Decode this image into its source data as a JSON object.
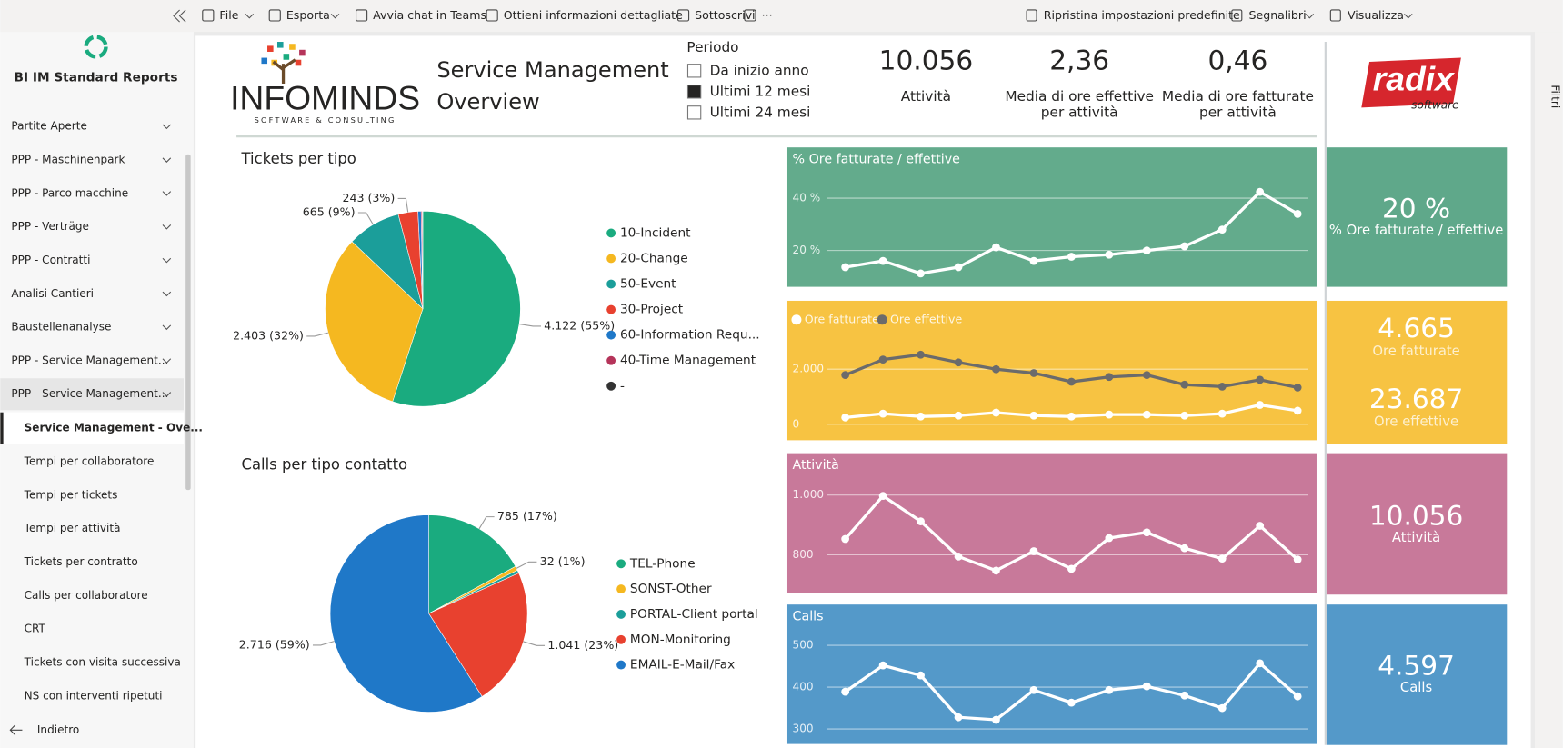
{
  "toolbar": {
    "left": [
      "File",
      "Esporta",
      "Avvia chat in Teams",
      "Ottieni informazioni dettagliate",
      "Sottoscrivi",
      "···"
    ],
    "right": [
      "Ripristina impostazioni predefinite",
      "Segnalibri",
      "Visualizza"
    ]
  },
  "sidebar": {
    "title": "BI IM Standard Reports",
    "sections": [
      "Partite Aperte",
      "PPP - Maschinenpark",
      "PPP - Parco macchine",
      "PPP - Verträge",
      "PPP - Contratti",
      "Analisi Cantieri",
      "Baustellenanalyse",
      "PPP - Service Management...",
      "PPP - Service Management..."
    ],
    "pages": [
      "Service Management - Ove...",
      "Tempi per collaboratore",
      "Tempi per tickets",
      "Tempi per attività",
      "Tickets per contratto",
      "Calls per collaboratore",
      "CRT",
      "Tickets con visita successiva",
      "NS con interventi ripetuti"
    ],
    "active_page": 0,
    "back": "Indietro"
  },
  "filters_pane": "Filtri",
  "header": {
    "logo": "INFOMINDS",
    "logo_tagline": "SOFTWARE & CONSULTING",
    "title_lines": [
      "Service Management",
      "Overview"
    ],
    "brand": "radix",
    "brand_tagline": "software"
  },
  "slicer": {
    "title": "Periodo",
    "options": [
      "Da inizio anno",
      "Ultimi 12 mesi",
      "Ultimi 24 mesi"
    ],
    "selected": 1
  },
  "kpis": [
    {
      "value": "10.056",
      "label_lines": [
        "Attività"
      ]
    },
    {
      "value": "2,36",
      "label_lines": [
        "Media di ore effettive",
        "per attività"
      ]
    },
    {
      "value": "0,46",
      "label_lines": [
        "Media di ore fatturate",
        "per attività"
      ]
    }
  ],
  "cards": [
    {
      "value": "20 %",
      "label": "% Ore fatturate / effettive"
    },
    {
      "value": "4.665",
      "label": "Ore fatturate"
    },
    {
      "value": "23.687",
      "label": "Ore effettive"
    },
    {
      "value": "10.056",
      "label": "Attività"
    },
    {
      "value": "4.597",
      "label": "Calls"
    }
  ],
  "charts": [
    {
      "type": "pie",
      "title": "Tickets per tipo",
      "categories": [
        "10-Incident",
        "20-Change",
        "50-Event",
        "30-Project",
        "60-Information Requ...",
        "40-Time Management",
        "-"
      ],
      "values": [
        4122,
        2403,
        665,
        243,
        40,
        15,
        5
      ],
      "value_labels": [
        "4.122 (55%)",
        "2.403 (32%)",
        "665 (9%)",
        "243 (3%)",
        null,
        null,
        null
      ],
      "colors": [
        "#1aab7f",
        "#f5b820",
        "#1b9e9a",
        "#e8412f",
        "#1f78c8",
        "#b5345a",
        "#333333"
      ]
    },
    {
      "type": "pie",
      "title": "Calls per tipo contatto",
      "categories": [
        "TEL-Phone",
        "SONST-Other",
        "PORTAL-Client portal",
        "MON-Monitoring",
        "EMAIL-E-Mail/Fax"
      ],
      "values": [
        785,
        32,
        23,
        1041,
        2716
      ],
      "value_labels": [
        "785 (17%)",
        "32 (1%)",
        null,
        "1.041 (23%)",
        "2.716 (59%)"
      ],
      "colors": [
        "#1aab7f",
        "#f5b820",
        "#1b9e9a",
        "#e8412f",
        "#1f78c8"
      ]
    },
    {
      "type": "line",
      "title": "% Ore fatturate / effettive",
      "background": "#63ab8c",
      "categories": [
        null,
        null,
        null,
        null,
        null,
        null,
        null,
        null,
        null,
        null,
        null,
        null,
        null
      ],
      "ylim": [
        8,
        48
      ],
      "yticks": [
        {
          "value": 20,
          "label": "20 %"
        },
        {
          "value": 40,
          "label": "40 %"
        }
      ],
      "grid": true,
      "series": [
        {
          "color": "#ffffff",
          "values": [
            13.6,
            16,
            11.2,
            13.6,
            21.2,
            16,
            17.6,
            18.4,
            20,
            21.6,
            28,
            42.4,
            34
          ]
        }
      ]
    },
    {
      "type": "line",
      "background": "#f7c342",
      "categories": [
        null,
        null,
        null,
        null,
        null,
        null,
        null,
        null,
        null,
        null,
        null,
        null,
        null
      ],
      "ylim": [
        -400,
        3400
      ],
      "yticks": [
        0,
        {
          "value": 2000,
          "label": "2.000"
        }
      ],
      "grid": true,
      "series": [
        {
          "name": "Ore fatturate",
          "color": "#ffffff",
          "values": [
            246,
            386,
            281,
            316,
            421,
            316,
            281,
            351,
            351,
            316,
            386,
            702,
            491
          ]
        },
        {
          "name": "Ore effettive",
          "color": "#6b6b6b",
          "values": [
            1789,
            2351,
            2526,
            2246,
            2000,
            1860,
            1544,
            1719,
            1789,
            1439,
            1368,
            1614,
            1333
          ]
        }
      ]
    },
    {
      "type": "line",
      "title": "Attività",
      "background": "#c8799a",
      "categories": [
        null,
        null,
        null,
        null,
        null,
        null,
        null,
        null,
        null,
        null,
        null,
        null,
        null
      ],
      "ylim": [
        690,
        1040
      ],
      "yticks": [
        800,
        {
          "value": 1000,
          "label": "1.000"
        }
      ],
      "grid": true,
      "series": [
        {
          "color": "#ffffff",
          "values": [
            853,
            997,
            912,
            794,
            747,
            812,
            753,
            856,
            875,
            822,
            787,
            897,
            784
          ]
        }
      ]
    },
    {
      "type": "line",
      "title": "Calls",
      "background": "#5499c9",
      "categories": [
        null,
        null,
        null,
        null,
        null,
        null,
        null,
        null,
        null,
        null,
        null,
        null,
        null
      ],
      "ylim": [
        276,
        526
      ],
      "yticks": [
        300,
        400,
        500
      ],
      "grid": true,
      "series": [
        {
          "color": "#ffffff",
          "values": [
            389,
            452,
            428,
            328,
            322,
            393,
            363,
            393,
            402,
            380,
            350,
            457,
            378
          ]
        }
      ]
    }
  ]
}
